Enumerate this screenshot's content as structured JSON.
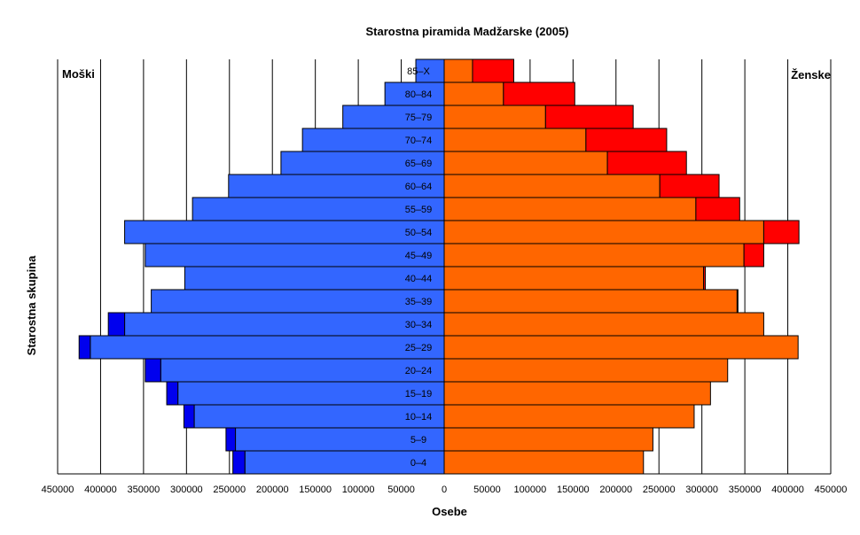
{
  "chart_data": {
    "type": "bar",
    "orientation": "horizontal-pyramid",
    "title": "Starostna piramida Madžarske (2005)",
    "xlabel": "Osebe",
    "ylabel": "Starostna skupina",
    "left_label": "Moški",
    "right_label": "Ženske",
    "xlim": [
      -450000,
      450000
    ],
    "xticks": [
      -450000,
      -400000,
      -350000,
      -300000,
      -250000,
      -200000,
      -150000,
      -100000,
      -50000,
      0,
      50000,
      100000,
      150000,
      200000,
      250000,
      300000,
      350000,
      400000,
      450000
    ],
    "xtick_labels": [
      "450000",
      "400000",
      "350000",
      "300000",
      "250000",
      "200000",
      "150000",
      "100000",
      "50000",
      "0",
      "50000",
      "100000",
      "150000",
      "200000",
      "250000",
      "300000",
      "350000",
      "400000",
      "450000"
    ],
    "grid": true,
    "categories": [
      "0–4",
      "5–9",
      "10–14",
      "15–19",
      "20–24",
      "25–29",
      "30–34",
      "35–39",
      "40–44",
      "45–49",
      "50–54",
      "55–59",
      "60–64",
      "65–69",
      "70–74",
      "75–79",
      "80–84",
      "85–X"
    ],
    "series": [
      {
        "side": "male",
        "role": "base",
        "color": "#3366ff",
        "values": [
          232000,
          243000,
          291000,
          310000,
          330000,
          412000,
          372000,
          341000,
          302000,
          348000,
          372000,
          293000,
          251000,
          190000,
          165000,
          118000,
          69000,
          33000
        ]
      },
      {
        "side": "male",
        "role": "excess",
        "color": "#0000ee",
        "values": [
          14000,
          11000,
          12000,
          13000,
          18000,
          13000,
          19000,
          0,
          0,
          0,
          0,
          0,
          0,
          0,
          0,
          0,
          0,
          0
        ]
      },
      {
        "side": "female",
        "role": "base",
        "color": "#ff6600",
        "values": [
          232000,
          243000,
          291000,
          310000,
          330000,
          412000,
          372000,
          341000,
          302000,
          349000,
          372000,
          293000,
          251000,
          190000,
          165000,
          118000,
          69000,
          33000
        ]
      },
      {
        "side": "female",
        "role": "excess",
        "color": "#ff0000",
        "values": [
          0,
          0,
          0,
          0,
          0,
          0,
          0,
          1000,
          2000,
          23000,
          41000,
          51000,
          69000,
          92000,
          94000,
          102000,
          83000,
          48000
        ]
      }
    ]
  }
}
